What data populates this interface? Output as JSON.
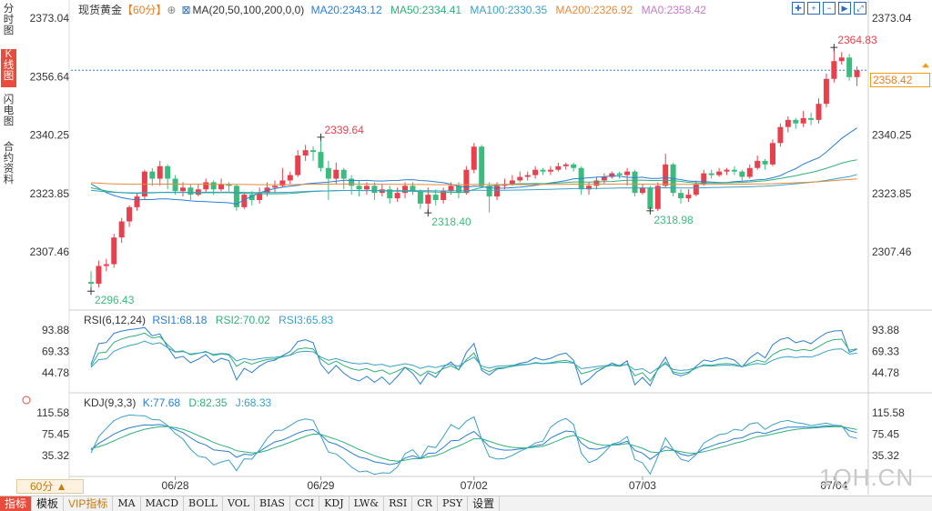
{
  "side_tabs": [
    {
      "label": "分时图",
      "active": false
    },
    {
      "label": "K线图",
      "active": true
    },
    {
      "label": "闪电图",
      "active": false
    },
    {
      "label": "合约资料",
      "active": false
    }
  ],
  "header": {
    "instrument": "现货黄金",
    "period": "【60分】",
    "ma_label": "MA(20,50,100,200,0,0)",
    "ma20": "MA20:2343.12",
    "ma50": "MA50:2334.41",
    "ma100": "MA100:2330.35",
    "ma200": "MA200:2326.92",
    "ma0": "MA0:2358.42"
  },
  "colors": {
    "up": "#e8414e",
    "down": "#3dbb7e",
    "ma20": "#2a7fd4",
    "ma50": "#30b07a",
    "ma100": "#3aa0c8",
    "ma200": "#e88a3a",
    "last_price": "#e67e22"
  },
  "price_axis": {
    "ticks": [
      "2373.04",
      "2356.64",
      "2340.25",
      "2323.85",
      "2307.46"
    ],
    "min": 2290.0,
    "max": 2373.04,
    "last_price": "2358.42"
  },
  "annotations": {
    "high1": "2339.64",
    "high2": "2364.83",
    "low1": "2296.43",
    "low2": "2318.40",
    "low3": "2318.98"
  },
  "rsi": {
    "label": "RSI(6,12,24)",
    "rsi1": "RSI1:68.18",
    "rsi2": "RSI2:70.02",
    "rsi3": "RSI3:65.83",
    "ticks": [
      "93.88",
      "69.33",
      "44.78"
    ]
  },
  "kdj": {
    "label": "KDJ(9,3,3)",
    "k": "K:77.68",
    "d": "D:82.35",
    "j": "J:68.33",
    "ticks": [
      "115.58",
      "75.45",
      "35.32"
    ]
  },
  "date_axis": [
    "06/28",
    "06/29",
    "07/02",
    "07/03",
    "07/04"
  ],
  "period_selector": "60分 ▲",
  "bottom_tabs": [
    "指标",
    "模板",
    "VIP指标",
    "MA",
    "MACD",
    "BOLL",
    "VOL",
    "BIAS",
    "CCI",
    "KDJ",
    "LW&",
    "RSI",
    "CR",
    "PSY",
    "设置"
  ],
  "toolbar_icons": [
    "crosshair-icon",
    "zoom-in-icon",
    "zoom-out-icon",
    "play-icon",
    "fullscreen-icon"
  ],
  "watermark": "1QH.CN",
  "chart_data": {
    "type": "candlestick",
    "candles": [
      [
        2299.0,
        2298.5,
        2302.0,
        2296.4
      ],
      [
        2298.5,
        2303.5,
        2305.0,
        2297.5
      ],
      [
        2303.5,
        2304.0,
        2305.5,
        2302.0
      ],
      [
        2304.0,
        2311.5,
        2312.5,
        2303.0
      ],
      [
        2311.5,
        2316.0,
        2317.0,
        2310.0
      ],
      [
        2316.0,
        2320.0,
        2320.5,
        2314.5
      ],
      [
        2320.0,
        2323.0,
        2324.0,
        2319.0
      ],
      [
        2323.0,
        2330.0,
        2330.5,
        2322.0
      ],
      [
        2330.0,
        2328.0,
        2331.0,
        2326.0
      ],
      [
        2328.0,
        2331.5,
        2333.0,
        2326.0
      ],
      [
        2331.5,
        2328.0,
        2332.0,
        2325.0
      ],
      [
        2328.0,
        2324.5,
        2329.0,
        2323.5
      ],
      [
        2324.5,
        2325.5,
        2327.0,
        2323.0
      ],
      [
        2325.5,
        2323.5,
        2326.5,
        2322.0
      ],
      [
        2323.5,
        2325.0,
        2326.5,
        2323.0
      ],
      [
        2325.0,
        2327.0,
        2328.0,
        2324.0
      ],
      [
        2327.0,
        2325.0,
        2327.5,
        2323.5
      ],
      [
        2325.0,
        2326.5,
        2328.0,
        2324.5
      ],
      [
        2326.5,
        2326.0,
        2327.0,
        2324.5
      ],
      [
        2326.0,
        2320.0,
        2326.5,
        2319.0
      ],
      [
        2320.0,
        2323.5,
        2324.0,
        2319.5
      ],
      [
        2323.5,
        2322.0,
        2324.5,
        2320.5
      ],
      [
        2322.0,
        2324.0,
        2325.5,
        2321.0
      ],
      [
        2324.0,
        2325.5,
        2327.0,
        2323.0
      ],
      [
        2325.5,
        2326.0,
        2327.5,
        2324.0
      ],
      [
        2326.0,
        2327.5,
        2331.0,
        2325.5
      ],
      [
        2327.5,
        2329.0,
        2330.0,
        2326.5
      ],
      [
        2329.0,
        2334.5,
        2336.0,
        2328.5
      ],
      [
        2334.5,
        2336.0,
        2337.5,
        2333.0
      ],
      [
        2336.0,
        2335.5,
        2337.0,
        2333.0
      ],
      [
        2335.5,
        2331.0,
        2339.6,
        2330.0
      ],
      [
        2331.0,
        2328.0,
        2333.0,
        2322.0
      ],
      [
        2328.0,
        2330.5,
        2332.5,
        2326.5
      ],
      [
        2330.5,
        2328.0,
        2331.0,
        2325.0
      ],
      [
        2328.0,
        2326.0,
        2329.0,
        2323.5
      ],
      [
        2326.0,
        2325.0,
        2327.5,
        2323.0
      ],
      [
        2325.0,
        2326.0,
        2327.0,
        2323.5
      ],
      [
        2326.0,
        2324.0,
        2327.0,
        2322.0
      ],
      [
        2324.0,
        2325.0,
        2326.5,
        2323.0
      ],
      [
        2325.0,
        2322.5,
        2326.0,
        2321.0
      ],
      [
        2322.5,
        2324.0,
        2325.5,
        2321.5
      ],
      [
        2324.0,
        2326.0,
        2327.0,
        2322.5
      ],
      [
        2326.0,
        2324.5,
        2327.0,
        2323.5
      ],
      [
        2324.5,
        2321.0,
        2325.0,
        2319.5
      ],
      [
        2321.0,
        2323.5,
        2325.5,
        2318.4
      ],
      [
        2323.5,
        2322.0,
        2325.0,
        2320.5
      ],
      [
        2322.0,
        2324.5,
        2325.5,
        2321.0
      ],
      [
        2324.5,
        2326.0,
        2327.0,
        2323.5
      ],
      [
        2326.0,
        2324.0,
        2327.0,
        2322.5
      ],
      [
        2324.0,
        2330.5,
        2331.5,
        2323.5
      ],
      [
        2330.5,
        2337.0,
        2338.0,
        2329.5
      ],
      [
        2337.0,
        2326.0,
        2337.5,
        2325.5
      ],
      [
        2326.0,
        2323.0,
        2327.0,
        2318.5
      ],
      [
        2323.0,
        2326.0,
        2327.0,
        2322.0
      ],
      [
        2326.0,
        2326.5,
        2328.0,
        2325.0
      ],
      [
        2326.5,
        2327.5,
        2329.0,
        2326.0
      ],
      [
        2327.5,
        2328.5,
        2330.0,
        2327.0
      ],
      [
        2328.5,
        2329.0,
        2330.0,
        2327.5
      ],
      [
        2329.0,
        2330.5,
        2331.5,
        2328.0
      ],
      [
        2330.5,
        2330.0,
        2331.0,
        2329.0
      ],
      [
        2330.0,
        2330.5,
        2331.5,
        2329.0
      ],
      [
        2330.5,
        2331.5,
        2332.5,
        2330.0
      ],
      [
        2331.5,
        2332.0,
        2332.5,
        2330.5
      ],
      [
        2332.0,
        2331.0,
        2332.5,
        2330.0
      ],
      [
        2331.0,
        2325.0,
        2331.5,
        2323.5
      ],
      [
        2325.0,
        2326.0,
        2327.0,
        2323.5
      ],
      [
        2326.0,
        2327.5,
        2328.5,
        2325.0
      ],
      [
        2327.5,
        2328.5,
        2329.5,
        2326.5
      ],
      [
        2328.5,
        2329.5,
        2330.0,
        2328.0
      ],
      [
        2329.5,
        2329.0,
        2330.0,
        2328.0
      ],
      [
        2329.0,
        2330.0,
        2331.0,
        2326.0
      ],
      [
        2330.0,
        2324.0,
        2330.5,
        2323.0
      ],
      [
        2324.0,
        2325.5,
        2326.5,
        2323.5
      ],
      [
        2325.5,
        2319.5,
        2326.0,
        2318.9
      ],
      [
        2319.5,
        2326.0,
        2327.0,
        2318.9
      ],
      [
        2326.0,
        2332.0,
        2335.0,
        2325.5
      ],
      [
        2332.0,
        2324.0,
        2332.5,
        2323.0
      ],
      [
        2324.0,
        2322.5,
        2325.0,
        2321.0
      ],
      [
        2322.5,
        2323.5,
        2325.0,
        2321.5
      ],
      [
        2323.5,
        2326.5,
        2327.5,
        2323.0
      ],
      [
        2326.5,
        2329.5,
        2330.5,
        2326.0
      ],
      [
        2329.5,
        2329.0,
        2330.5,
        2328.0
      ],
      [
        2329.0,
        2330.0,
        2331.0,
        2328.5
      ],
      [
        2330.0,
        2330.5,
        2331.0,
        2329.0
      ],
      [
        2330.5,
        2330.0,
        2331.5,
        2329.0
      ],
      [
        2330.0,
        2328.5,
        2330.5,
        2327.5
      ],
      [
        2328.5,
        2331.0,
        2332.0,
        2328.0
      ],
      [
        2331.0,
        2333.0,
        2334.5,
        2330.5
      ],
      [
        2333.0,
        2332.0,
        2333.5,
        2330.5
      ],
      [
        2332.0,
        2338.0,
        2339.0,
        2331.5
      ],
      [
        2338.0,
        2342.5,
        2343.5,
        2337.0
      ],
      [
        2342.5,
        2344.5,
        2345.5,
        2341.0
      ],
      [
        2344.5,
        2343.5,
        2345.0,
        2342.0
      ],
      [
        2343.5,
        2345.0,
        2347.0,
        2342.5
      ],
      [
        2345.0,
        2344.5,
        2346.5,
        2343.0
      ],
      [
        2344.5,
        2349.0,
        2350.5,
        2343.5
      ],
      [
        2349.0,
        2356.0,
        2357.5,
        2348.0
      ],
      [
        2356.0,
        2361.0,
        2364.8,
        2355.0
      ],
      [
        2361.0,
        2362.0,
        2363.5,
        2360.0
      ],
      [
        2362.0,
        2356.5,
        2363.0,
        2355.5
      ],
      [
        2356.5,
        2358.4,
        2359.5,
        2354.0
      ]
    ],
    "ma_lines": {
      "MA20": "MA20:2343.12",
      "MA50": "MA50:2334.41",
      "MA100": "MA100:2330.35",
      "MA200": "MA200:2326.92"
    }
  }
}
